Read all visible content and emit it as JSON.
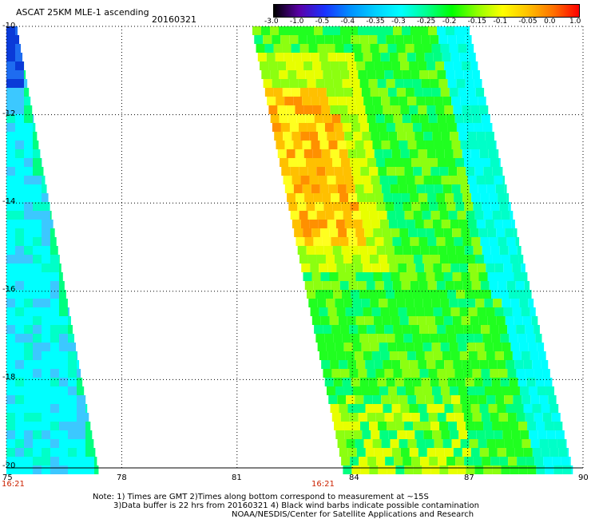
{
  "header": {
    "title": "ASCAT 25KM MLE-1 ascending",
    "date": "20160321"
  },
  "colorbar": {
    "labels": [
      "-3.0",
      "-1.0",
      "-0.5",
      "-0.4",
      "-0.35",
      "-0.3",
      "-0.25",
      "-0.2",
      "-0.15",
      "-0.1",
      "-0.05",
      "0.0",
      "1.0"
    ],
    "colors": [
      "#000000",
      "#5a00a8",
      "#1a32ff",
      "#0090ff",
      "#00d0ff",
      "#00ffff",
      "#00ff90",
      "#00ff00",
      "#90ff00",
      "#ffff00",
      "#ffc000",
      "#ff7000",
      "#ff0000"
    ]
  },
  "map": {
    "lon_range": [
      75,
      90
    ],
    "lat_range": [
      -10,
      -20
    ],
    "x_ticks": [
      "75",
      "78",
      "81",
      "84",
      "87",
      "90"
    ],
    "y_ticks": [
      "-10",
      "-12",
      "-14",
      "-16",
      "-18",
      "-20"
    ],
    "swath_times": [
      "16:21",
      "16:21"
    ],
    "grid": "dotted"
  },
  "notes": [
    "Note: 1) Times are GMT 2)Times along bottom correspond to measurement at ~15S",
    "3)Data buffer is 22 hrs from 20160321 4) Black wind barbs indicate possible contamination",
    "NOAA/NESDIS/Center for Satellite Applications and Research"
  ]
}
